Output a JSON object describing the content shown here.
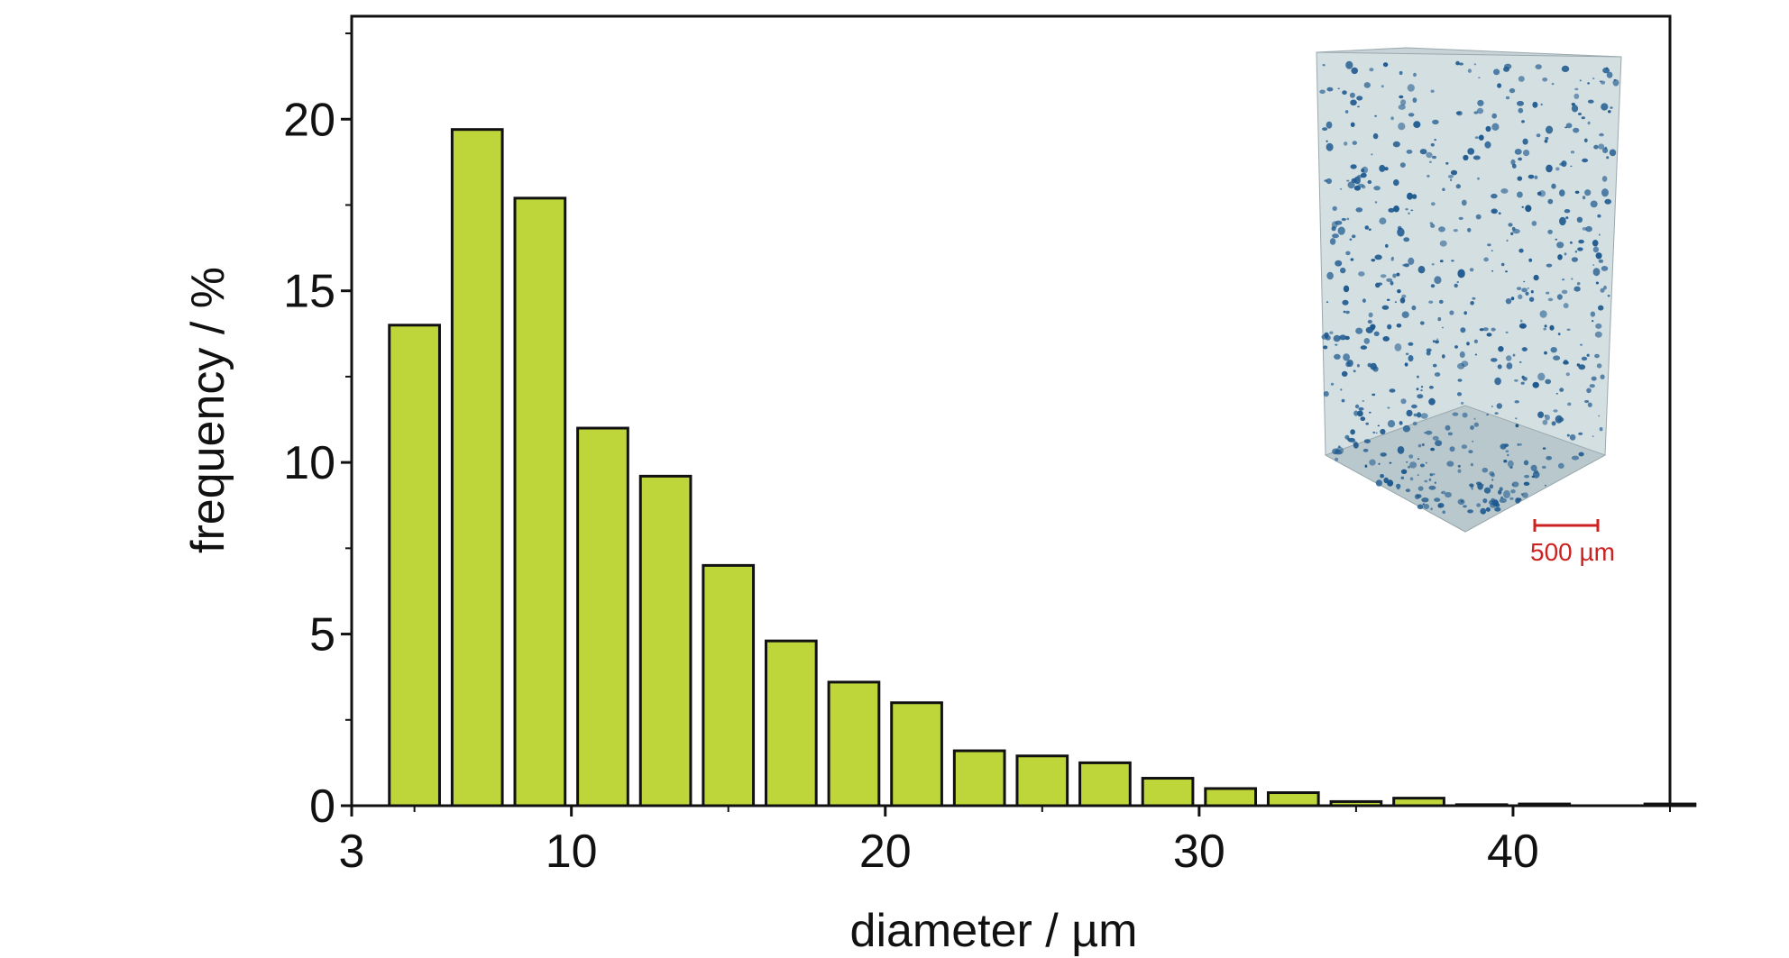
{
  "chart_data": {
    "type": "bar",
    "xlabel": "diameter / µm",
    "ylabel": "frequency / %",
    "xlim": [
      3,
      45
    ],
    "ylim": [
      0,
      23
    ],
    "x_ticks": [
      3,
      10,
      20,
      30,
      40
    ],
    "y_ticks": [
      0,
      5,
      10,
      15,
      20
    ],
    "bin_centers": [
      5,
      7,
      9,
      11,
      13,
      15,
      17,
      19,
      21,
      23,
      25,
      27,
      29,
      31,
      33,
      35,
      37,
      39,
      41,
      43,
      45
    ],
    "values": [
      14.0,
      19.7,
      17.7,
      11.0,
      9.6,
      7.0,
      4.8,
      3.6,
      3.0,
      1.6,
      1.45,
      1.25,
      0.8,
      0.5,
      0.38,
      0.12,
      0.22,
      0.03,
      0.05,
      0.0,
      0.05
    ],
    "grid": false,
    "bar_color": "#bfd63a",
    "bar_edge_color": "#111111"
  },
  "inset": {
    "scale_bar_label": "500 µm",
    "scale_color": "#cc2222",
    "pore_color": "#1f5a8f",
    "cube_face_color": "#d4dfe2"
  }
}
